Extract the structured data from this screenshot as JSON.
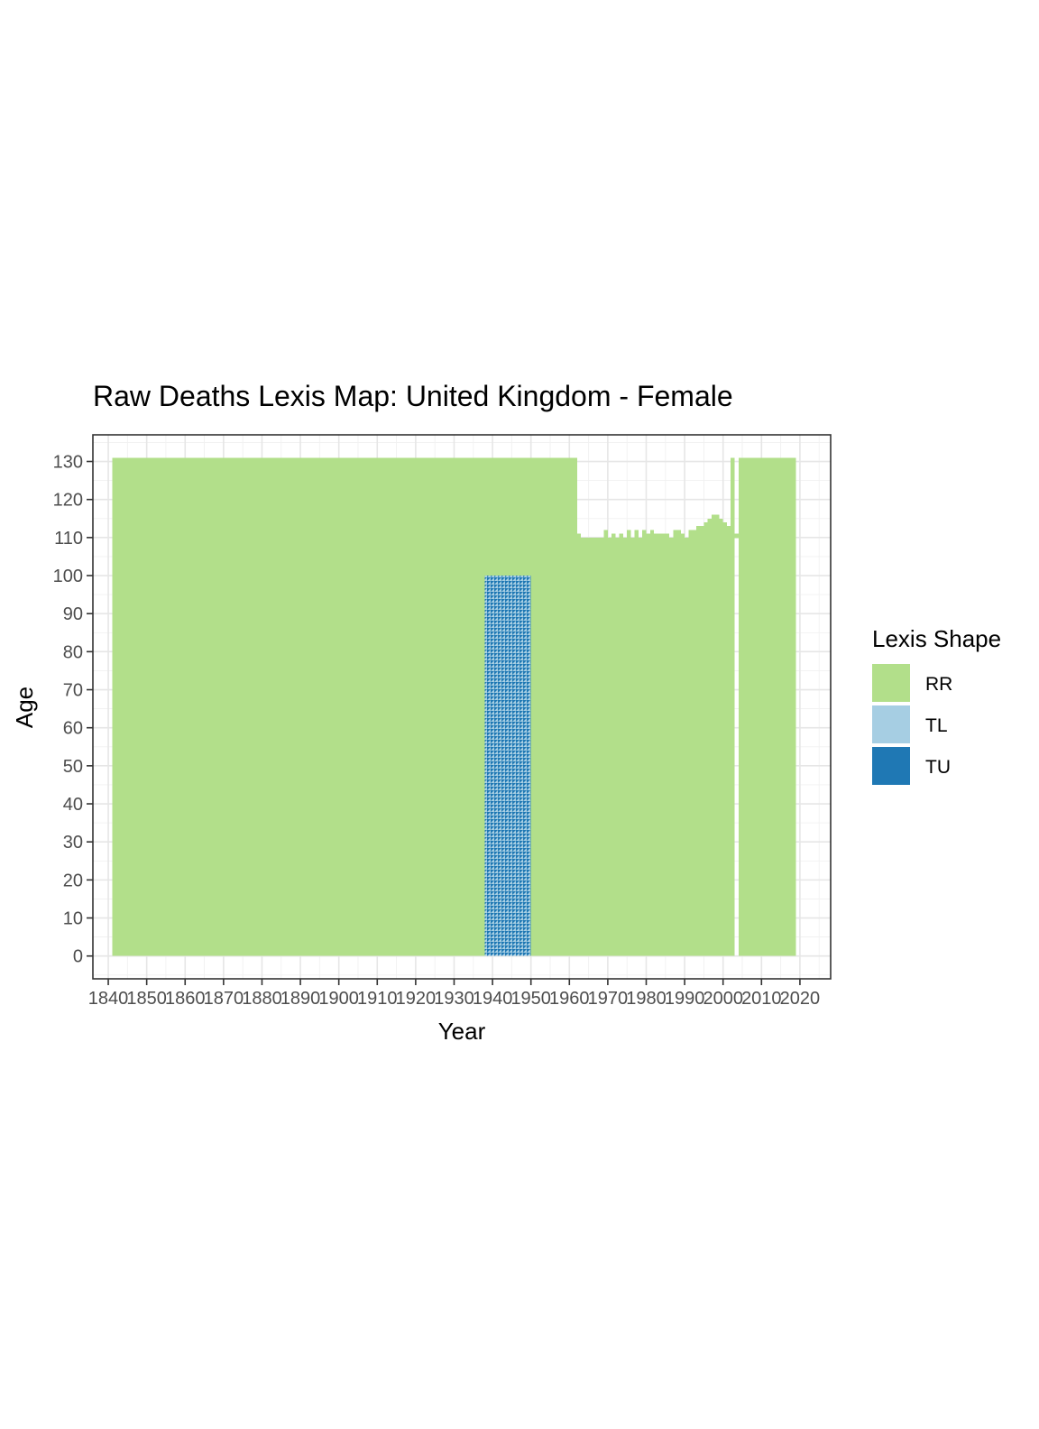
{
  "chart_data": {
    "type": "heatmap",
    "title": "Raw Deaths Lexis Map: United Kingdom - Female",
    "xlabel": "Year",
    "ylabel": "Age",
    "xlim": [
      1836,
      2028
    ],
    "ylim": [
      -6,
      137
    ],
    "x_ticks": [
      1840,
      1850,
      1860,
      1870,
      1880,
      1890,
      1900,
      1910,
      1920,
      1930,
      1940,
      1950,
      1960,
      1970,
      1980,
      1990,
      2000,
      2010,
      2020
    ],
    "y_ticks": [
      0,
      10,
      20,
      30,
      40,
      50,
      60,
      70,
      80,
      90,
      100,
      110,
      120,
      130
    ],
    "grid": true,
    "legend": {
      "title": "Lexis Shape",
      "position": "right",
      "entries": [
        {
          "label": "RR",
          "color": "#b2df8a"
        },
        {
          "label": "TL",
          "color": "#a6cee3"
        },
        {
          "label": "TU",
          "color": "#1f78b4"
        }
      ]
    },
    "regions": [
      {
        "shape": "RR",
        "x": [
          1841,
          1938
        ],
        "y": [
          0,
          131
        ]
      },
      {
        "shape": "TL/TU",
        "x": [
          1938,
          1950
        ],
        "y": [
          0,
          100
        ]
      },
      {
        "shape": "RR",
        "x": [
          1938,
          1950
        ],
        "y": [
          100,
          131
        ]
      },
      {
        "shape": "RR",
        "x": [
          1950,
          1962
        ],
        "y": [
          0,
          131
        ]
      },
      {
        "shape": "RR",
        "x": [
          1962,
          2002
        ],
        "y": [
          0,
          110
        ]
      },
      {
        "shape": "RR",
        "x": [
          2002,
          2003
        ],
        "y": [
          0,
          131
        ]
      },
      {
        "shape": "RR",
        "x": [
          2004,
          2019
        ],
        "y": [
          0,
          131
        ]
      }
    ],
    "ragged_top": [
      {
        "year": 1962,
        "max_age": 111
      },
      {
        "year": 1963,
        "max_age": 109
      },
      {
        "year": 1964,
        "max_age": 110
      },
      {
        "year": 1965,
        "max_age": 108
      },
      {
        "year": 1966,
        "max_age": 110
      },
      {
        "year": 1967,
        "max_age": 109
      },
      {
        "year": 1968,
        "max_age": 110
      },
      {
        "year": 1969,
        "max_age": 112
      },
      {
        "year": 1970,
        "max_age": 110
      },
      {
        "year": 1971,
        "max_age": 111
      },
      {
        "year": 1972,
        "max_age": 110
      },
      {
        "year": 1973,
        "max_age": 111
      },
      {
        "year": 1974,
        "max_age": 110
      },
      {
        "year": 1975,
        "max_age": 112
      },
      {
        "year": 1976,
        "max_age": 110
      },
      {
        "year": 1977,
        "max_age": 112
      },
      {
        "year": 1978,
        "max_age": 110
      },
      {
        "year": 1979,
        "max_age": 112
      },
      {
        "year": 1980,
        "max_age": 111
      },
      {
        "year": 1981,
        "max_age": 112
      },
      {
        "year": 1982,
        "max_age": 111
      },
      {
        "year": 1983,
        "max_age": 111
      },
      {
        "year": 1984,
        "max_age": 111
      },
      {
        "year": 1985,
        "max_age": 111
      },
      {
        "year": 1986,
        "max_age": 110
      },
      {
        "year": 1987,
        "max_age": 112
      },
      {
        "year": 1988,
        "max_age": 112
      },
      {
        "year": 1989,
        "max_age": 111
      },
      {
        "year": 1990,
        "max_age": 110
      },
      {
        "year": 1991,
        "max_age": 112
      },
      {
        "year": 1992,
        "max_age": 112
      },
      {
        "year": 1993,
        "max_age": 113
      },
      {
        "year": 1994,
        "max_age": 113
      },
      {
        "year": 1995,
        "max_age": 114
      },
      {
        "year": 1996,
        "max_age": 115
      },
      {
        "year": 1997,
        "max_age": 116
      },
      {
        "year": 1998,
        "max_age": 116
      },
      {
        "year": 1999,
        "max_age": 115
      },
      {
        "year": 2000,
        "max_age": 114
      },
      {
        "year": 2001,
        "max_age": 113
      },
      {
        "year": 2003,
        "max_age": 111
      }
    ]
  }
}
